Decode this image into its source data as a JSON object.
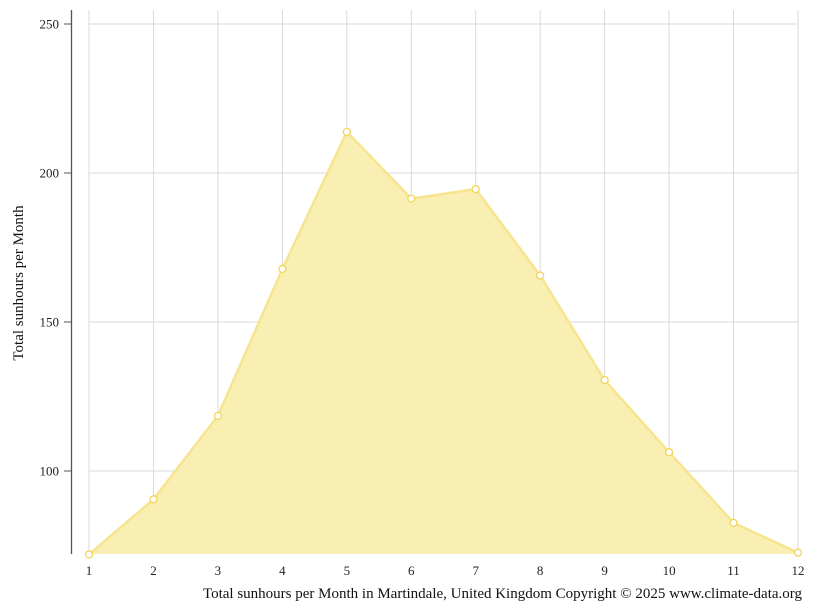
{
  "chart_data": {
    "type": "area",
    "ylabel": "Total sunhours per Month",
    "caption": "Total sunhours per Month in Martindale, United Kingdom Copyright © 2025 www.climate-data.org",
    "x": [
      1,
      2,
      3,
      4,
      5,
      6,
      7,
      8,
      9,
      10,
      11,
      12
    ],
    "xticks": [
      "1",
      "2",
      "3",
      "4",
      "5",
      "6",
      "7",
      "8",
      "9",
      "10",
      "11",
      "12"
    ],
    "yticks": [
      100,
      150,
      200,
      250
    ],
    "ylim": [
      72,
      254
    ],
    "grid": true,
    "series": [
      {
        "values": [
          72,
          90.5,
          118.5,
          167.8,
          213.8,
          191.4,
          194.6,
          165.6,
          130.5,
          106.3,
          82.6,
          72.6
        ]
      }
    ],
    "colors": {
      "fill": "#f9eeae",
      "line": "#f7e48f",
      "marker_stroke": "#f2d45a",
      "grid": "#d9d9d9",
      "axis": "#555555"
    }
  }
}
